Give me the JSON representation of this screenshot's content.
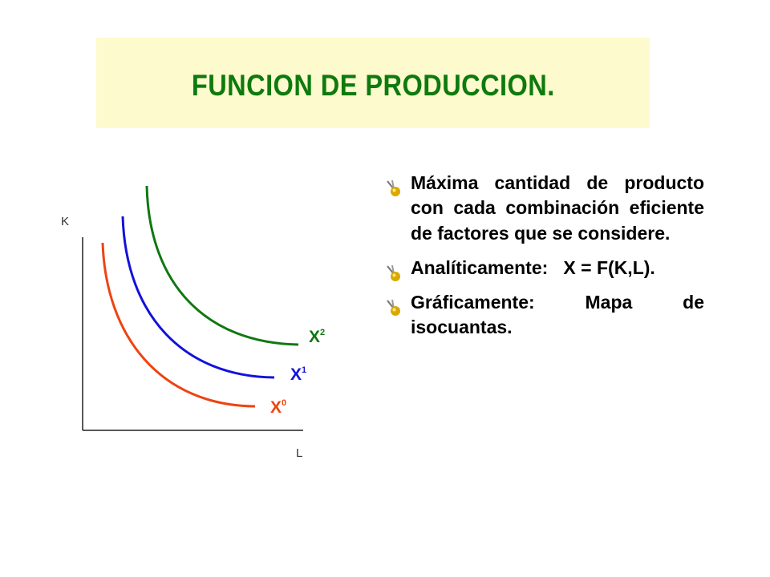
{
  "title": "FUNCION DE PRODUCCION.",
  "diagram": {
    "y_axis_label": "K",
    "x_axis_label": "L",
    "curves": [
      {
        "label": "X",
        "sub": "0",
        "color": "#ee4411"
      },
      {
        "label": "X",
        "sub": "1",
        "color": "#1111dd"
      },
      {
        "label": "X",
        "sub": "2",
        "color": "#117711"
      }
    ]
  },
  "bullets": [
    {
      "icon": "pushpin-icon",
      "text": "Máxima cantidad de producto con cada combinación eficiente de factores que se considere."
    },
    {
      "icon": "pushpin-icon",
      "text": "Analíticamente:   X = F(K,L)."
    },
    {
      "icon": "pushpin-icon",
      "text": "Gráficamente: Mapa de isocuantas."
    }
  ]
}
